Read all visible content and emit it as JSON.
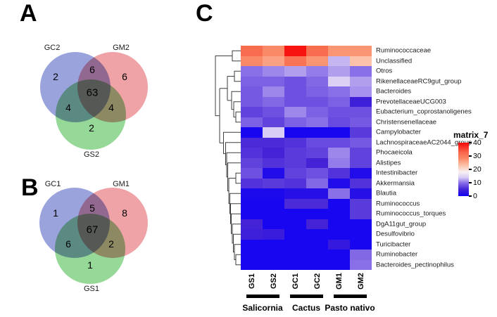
{
  "panels": {
    "a": "A",
    "b": "B",
    "c": "C"
  },
  "chart_data": [
    {
      "type": "venn",
      "panel": "A",
      "sets": [
        "GC2",
        "GM2",
        "GS2"
      ],
      "colors": [
        "#9AA3DC",
        "#F0A3A6",
        "#96D898"
      ],
      "counts": {
        "GC2_only": "2",
        "GC2_GM2": "6",
        "GM2_only": "6",
        "GC2_GM2_GS2": "63",
        "GC2_GS2": "4",
        "GM2_GS2": "4",
        "GS2_only": "2"
      }
    },
    {
      "type": "venn",
      "panel": "B",
      "sets": [
        "GC1",
        "GM1",
        "GS1"
      ],
      "colors": [
        "#9AA3DC",
        "#F0A3A6",
        "#96D898"
      ],
      "counts": {
        "GC1_only": "1",
        "GC1_GM1": "5",
        "GM1_only": "8",
        "GC1_GM1_GS1": "67",
        "GC1_GS1": "6",
        "GM1_GS1": "2",
        "GS1_only": "1"
      }
    },
    {
      "type": "heatmap",
      "panel": "C",
      "columns": [
        "GS1",
        "GS2",
        "GC1",
        "GC2",
        "GM1",
        "GM2"
      ],
      "rows": [
        "Ruminococcaceae",
        "Unclassified",
        "Otros",
        "RikenellaceaeRC9gut_group",
        "Bacteroides",
        "PrevotellaceaeUCG003",
        "Eubacterium_coprostanoligenes",
        "Christensenellaceae",
        "Campylobacter",
        "LachnospiraceaeAC2044_group",
        "Phocaeicola",
        "Alistipes",
        "Intestinibacter",
        "Akkermansia",
        "Blautia",
        "Ruminococcus",
        "Ruminococcus_torques",
        "DgA11gut_group",
        "Desulfovibrio",
        "Turicibacter",
        "Ruminobacter",
        "Bacteroides_pectinophilus"
      ],
      "values": [
        [
          32,
          28,
          39,
          32,
          27,
          27
        ],
        [
          28,
          26,
          31,
          27,
          13,
          23
        ],
        [
          10,
          11,
          12,
          10.5,
          12,
          10
        ],
        [
          9,
          9,
          8,
          9.5,
          14.5,
          12
        ],
        [
          8.5,
          11,
          8,
          9,
          10,
          11.5
        ],
        [
          8.5,
          9.5,
          8,
          8,
          9,
          4.5
        ],
        [
          7,
          8,
          11,
          9,
          8,
          8
        ],
        [
          9,
          7,
          9,
          10,
          7.5,
          8.5
        ],
        [
          0.5,
          14,
          0.5,
          0.5,
          0.5,
          6.5
        ],
        [
          5.5,
          5.5,
          6,
          7.5,
          7.5,
          8.5
        ],
        [
          6,
          5,
          6.5,
          7,
          11,
          7
        ],
        [
          7,
          6,
          6.5,
          5,
          10.5,
          7
        ],
        [
          8,
          1.5,
          7,
          8,
          6,
          1.5
        ],
        [
          6,
          6.5,
          6,
          9.5,
          1.5,
          6
        ],
        [
          1,
          1,
          2,
          2,
          10,
          2
        ],
        [
          0.5,
          0.5,
          5.5,
          5.5,
          0.5,
          6.5
        ],
        [
          0.5,
          0.5,
          0.5,
          0.5,
          0.5,
          6.5
        ],
        [
          5,
          0.5,
          0.5,
          5,
          0.5,
          0.5
        ],
        [
          4.5,
          4,
          0.5,
          0.5,
          0.5,
          0.5
        ],
        [
          0.5,
          0.5,
          0.5,
          0.5,
          3.5,
          0.5
        ],
        [
          0.5,
          0.5,
          0.5,
          0.5,
          0.5,
          9.5
        ],
        [
          0.5,
          0.5,
          0.5,
          0.5,
          0.5,
          10
        ]
      ],
      "value_range": [
        0,
        40
      ],
      "legend": {
        "title": "matrix_7",
        "ticks": [
          40,
          30,
          20,
          10,
          0
        ]
      },
      "groups": [
        {
          "label": "Salicornia",
          "cols": [
            0,
            1
          ]
        },
        {
          "label": "Cactus",
          "cols": [
            2,
            3
          ]
        },
        {
          "label": "Pasto nativo",
          "cols": [
            4,
            5
          ]
        }
      ],
      "colormap": [
        [
          0,
          "#1203f2"
        ],
        [
          5,
          "#4423d6"
        ],
        [
          10,
          "#8a70e8"
        ],
        [
          14,
          "#d8cdf4"
        ],
        [
          18,
          "#f7f0f3"
        ],
        [
          23,
          "#fcc2aa"
        ],
        [
          28,
          "#fa8a67"
        ],
        [
          33,
          "#f8644a"
        ],
        [
          40,
          "#f70505"
        ]
      ]
    }
  ]
}
